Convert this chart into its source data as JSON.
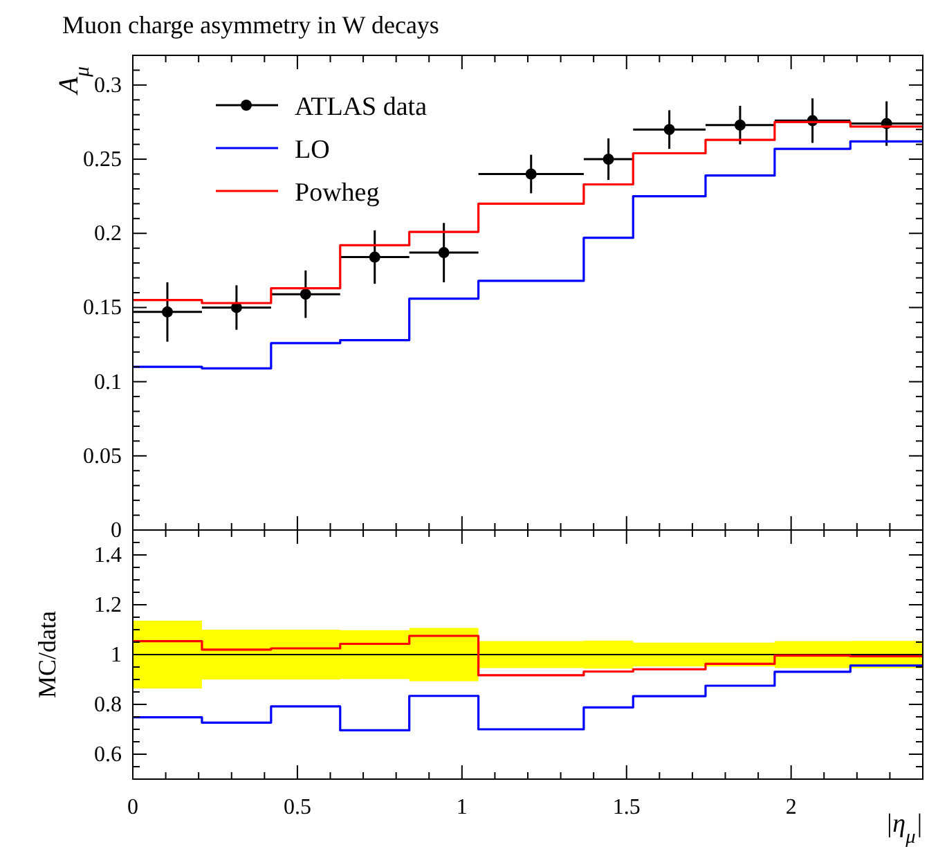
{
  "chart_data": [
    {
      "type": "step",
      "title": "Muon charge asymmetry in W decays",
      "ylabel": "A$_{μ}$",
      "xlim": [
        0,
        2.4
      ],
      "ylim": [
        0,
        0.32
      ],
      "xticks": [
        {
          "value": 0,
          "label": null
        },
        {
          "value": 0.5,
          "label": null
        },
        {
          "value": 1,
          "label": null
        },
        {
          "value": 1.5,
          "label": null
        },
        {
          "value": 2,
          "label": null
        }
      ],
      "yticks": [
        0,
        0.05,
        0.1,
        0.15,
        0.2,
        0.25,
        0.3
      ],
      "tick_labels": "y",
      "legend": "top left",
      "grid": false,
      "series": [
        {
          "name": "ATLAS data",
          "type": "scatter",
          "marker": "circle",
          "color": "#000000",
          "x": [
            0.105,
            0.315,
            0.525,
            0.735,
            0.945,
            1.21,
            1.445,
            1.63,
            1.845,
            2.065,
            2.29
          ],
          "values": [
            0.147,
            0.15,
            0.159,
            0.184,
            0.187,
            0.24,
            0.25,
            0.27,
            0.273,
            0.276,
            0.274
          ],
          "errors": [
            0.02,
            0.015,
            0.016,
            0.018,
            0.02,
            0.013,
            0.014,
            0.013,
            0.013,
            0.015,
            0.015
          ],
          "xerrors": [
            0.105,
            0.105,
            0.105,
            0.105,
            0.105,
            0.16,
            0.075,
            0.11,
            0.105,
            0.115,
            0.11
          ]
        },
        {
          "name": "LO",
          "color": "#0000ff",
          "x": [
            0,
            0.21,
            0.42,
            0.63,
            0.84,
            1.05,
            1.37,
            1.52,
            1.74,
            1.95,
            2.18,
            2.4
          ],
          "values": [
            0.11,
            0.109,
            0.126,
            0.128,
            0.156,
            0.168,
            0.197,
            0.225,
            0.239,
            0.257,
            0.262,
            0.262
          ]
        },
        {
          "name": "Powheg",
          "color": "#ff0000",
          "x": [
            0,
            0.21,
            0.42,
            0.63,
            0.84,
            1.05,
            1.37,
            1.52,
            1.74,
            1.95,
            2.18,
            2.4
          ],
          "values": [
            0.155,
            0.153,
            0.163,
            0.192,
            0.201,
            0.22,
            0.233,
            0.254,
            0.263,
            0.275,
            0.272,
            0.272
          ]
        }
      ]
    },
    {
      "type": "step",
      "xlabel": "|η$_{μ}$|",
      "ylabel": "MC/data",
      "xlim": [
        0,
        2.4
      ],
      "ylim": [
        0.5,
        1.5
      ],
      "xticks": [
        0,
        0.5,
        1,
        1.5,
        2
      ],
      "yticks": [
        0.6,
        0.8,
        1,
        1.2,
        1.4
      ],
      "grid": false,
      "series": [
        {
          "color": "#000000",
          "x": [
            0,
            0.21,
            0.42,
            0.63,
            0.84,
            1.05,
            1.37,
            1.52,
            1.74,
            1.95,
            2.18,
            2.4
          ],
          "values": [
            1,
            1,
            1,
            1,
            1,
            1,
            1,
            1,
            1,
            1,
            1,
            1
          ],
          "lower": [
            0.864,
            0.9,
            0.9,
            0.902,
            0.893,
            0.946,
            0.944,
            0.952,
            0.952,
            0.946,
            0.945,
            0.945
          ],
          "upper": [
            1.136,
            1.1,
            1.1,
            1.098,
            1.107,
            1.054,
            1.056,
            1.048,
            1.048,
            1.054,
            1.055,
            1.055
          ]
        },
        {
          "color": "#0000ff",
          "x": [
            0,
            0.21,
            0.42,
            0.63,
            0.84,
            1.05,
            1.37,
            1.52,
            1.74,
            1.95,
            2.18,
            2.4
          ],
          "values": [
            0.748,
            0.727,
            0.792,
            0.696,
            0.834,
            0.7,
            0.788,
            0.833,
            0.875,
            0.931,
            0.956,
            0.956
          ]
        },
        {
          "color": "#ff0000",
          "x": [
            0,
            0.21,
            0.42,
            0.63,
            0.84,
            1.05,
            1.37,
            1.52,
            1.74,
            1.95,
            2.18,
            2.4
          ],
          "values": [
            1.054,
            1.02,
            1.025,
            1.043,
            1.075,
            0.917,
            0.932,
            0.941,
            0.963,
            0.996,
            0.993,
            0.993
          ]
        }
      ]
    }
  ]
}
